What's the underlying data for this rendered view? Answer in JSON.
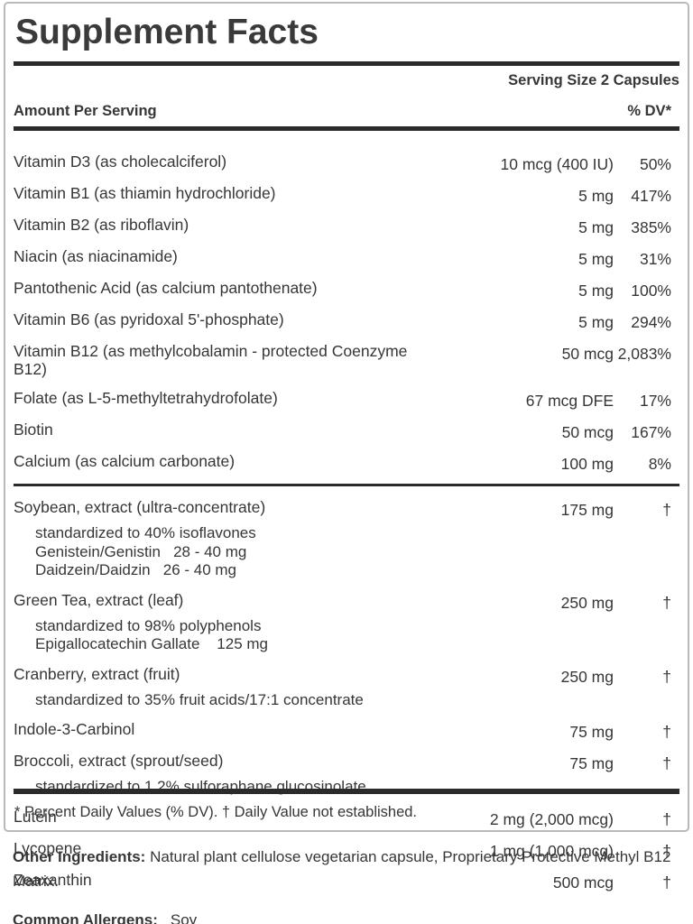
{
  "page": {
    "title": "Supplement Facts",
    "serving_size": "Serving Size 2 Capsules",
    "amount_header": "Amount Per Serving",
    "dv_header": "% DV*",
    "nutrients": [
      {
        "name": "Vitamin D3 (as cholecalciferol)",
        "amount": "10 mcg (400 IU)",
        "dv": "50%"
      },
      {
        "name": "Vitamin B1 (as thiamin hydrochloride)",
        "amount": "5 mg",
        "dv": "417%"
      },
      {
        "name": "Vitamin B2 (as riboflavin)",
        "amount": "5 mg",
        "dv": "385%"
      },
      {
        "name": "Niacin (as niacinamide)",
        "amount": "5 mg",
        "dv": "31%"
      },
      {
        "name": "Pantothenic Acid (as calcium pantothenate)",
        "amount": "5 mg",
        "dv": "100%"
      },
      {
        "name": "Vitamin B6 (as pyridoxal 5'-phosphate)",
        "amount": "5 mg",
        "dv": "294%"
      },
      {
        "name": "Vitamin B12 (as methylcobalamin - protected Coenzyme\nB12)",
        "amount": "50 mcg",
        "dv": "2,083%"
      },
      {
        "name": "Folate (as L-5-methyltetrahydrofolate)",
        "amount": "67 mcg DFE",
        "dv": "17%"
      },
      {
        "name": "Biotin",
        "amount": "50 mcg",
        "dv": "167%"
      },
      {
        "name": "Calcium (as calcium carbonate)",
        "amount": "100 mg",
        "dv": "8%"
      }
    ],
    "botanicals": [
      {
        "name": "Soybean, extract (ultra-concentrate)",
        "amount": "175 mg",
        "dv": "†",
        "subs": [
          "standardized to 40% isoflavones",
          "Genistein/Genistin   28 - 40 mg",
          "Daidzein/Daidzin   26 - 40 mg"
        ]
      },
      {
        "name": "Green Tea, extract (leaf)",
        "amount": "250 mg",
        "dv": "†",
        "subs": [
          "standardized to 98% polyphenols",
          "Epigallocatechin Gallate    125 mg"
        ]
      },
      {
        "name": "Cranberry, extract (fruit)",
        "amount": "250 mg",
        "dv": "†",
        "subs": [
          "standardized to 35% fruit acids/17:1 concentrate"
        ]
      },
      {
        "name": "Indole-3-Carbinol",
        "amount": "75 mg",
        "dv": "†"
      },
      {
        "name": "Broccoli, extract (sprout/seed)",
        "amount": "75 mg",
        "dv": "†",
        "subs": [
          "standardized to 1.2% sulforaphane glucosinolate"
        ]
      },
      {
        "name": "Lutein",
        "amount": "2 mg (2,000 mcg)",
        "dv": "†"
      },
      {
        "name": "Lycopene",
        "amount": "1 mg (1,000 mcg)",
        "dv": "†"
      },
      {
        "name": "Zeaxanthin",
        "amount": "500 mcg",
        "dv": "†"
      }
    ],
    "footnote": "* Percent Daily Values (% DV). † Daily Value not established.",
    "other_ingredients": {
      "label": "Other Ingredients:",
      "text": " Natural plant cellulose vegetarian capsule, Proprietary Protective Methyl B12 Matrix."
    },
    "allergens": {
      "label": "Common Allergens:",
      "text": "Soy"
    }
  }
}
